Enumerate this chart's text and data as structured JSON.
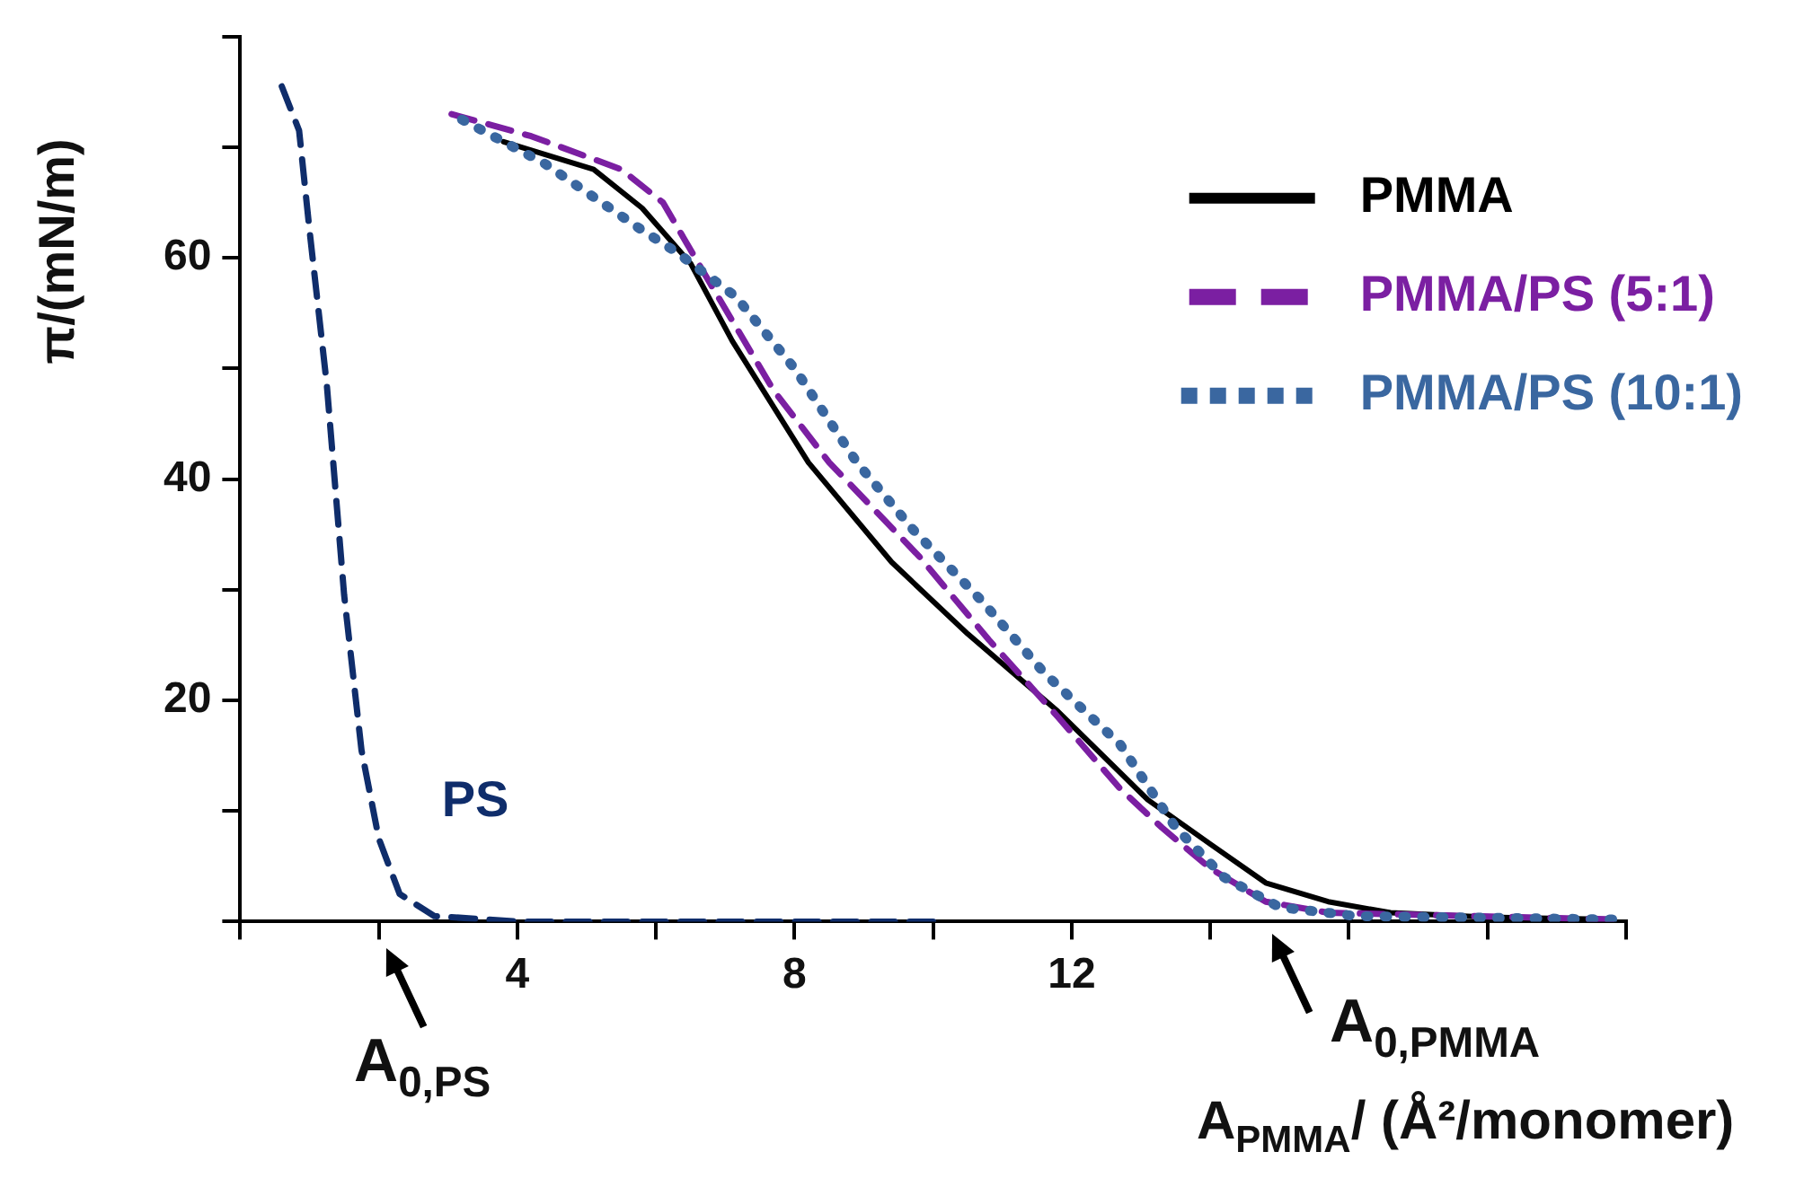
{
  "chart_data": {
    "type": "line",
    "xlabel": "A$_{PMMA}$/ (Å²/monomer)",
    "ylabel": "π/(mN/m)",
    "xlim": [
      0,
      20
    ],
    "xticks": [
      {
        "value": 0,
        "label": null
      },
      {
        "value": 2,
        "label": null
      },
      4,
      {
        "value": 6,
        "label": null
      },
      8,
      {
        "value": 10,
        "label": null
      },
      12,
      {
        "value": 14,
        "label": null
      },
      {
        "value": 16,
        "label": null
      },
      {
        "value": 18,
        "label": null
      },
      {
        "value": 20,
        "label": null
      }
    ],
    "ylim": [
      0,
      80
    ],
    "yticks": [
      {
        "value": 0,
        "label": null
      },
      {
        "value": 10,
        "label": null
      },
      20,
      {
        "value": 30,
        "label": null
      },
      40,
      {
        "value": 50,
        "label": null
      },
      60,
      {
        "value": 70,
        "label": null
      },
      {
        "value": 80,
        "label": null
      }
    ],
    "grid": false,
    "legend": "top right",
    "marker": "none",
    "series": [
      {
        "name": "PMMA",
        "color": "#000000",
        "line_style": "solid",
        "x": [
          3.8,
          5.1,
          5.8,
          6.5,
          7.1,
          8.2,
          9.4,
          10.5,
          11.8,
          13.1,
          14,
          14.8,
          15.7,
          16.6,
          18,
          19.8
        ],
        "values": [
          70.5,
          68,
          64.5,
          59.5,
          52.5,
          41.5,
          32.5,
          26,
          19,
          11,
          7,
          3.5,
          1.8,
          0.8,
          0.4,
          0.2
        ]
      },
      {
        "name": "PMMA/PS (5:1)",
        "color": "#7b1fa2",
        "line_style": "dashed",
        "x": [
          3.05,
          4.2,
          5.5,
          6.1,
          6.8,
          7.7,
          8.5,
          9.8,
          10.8,
          11.8,
          12.7,
          13.3,
          14,
          14.8,
          15.7,
          19.8
        ],
        "values": [
          73,
          71,
          68,
          65,
          57.5,
          48,
          41.5,
          33,
          25.5,
          18.5,
          12,
          8.5,
          4.8,
          1.8,
          0.8,
          0.2
        ]
      },
      {
        "name": "PMMA/PS (10:1)",
        "color": "#3a67a0",
        "line_style": "dotted",
        "x": [
          3.2,
          4.4,
          5.8,
          6.3,
          7.15,
          8,
          8.9,
          9.7,
          10.7,
          11.6,
          12.7,
          13.5,
          14.2,
          15,
          16.1,
          19.8
        ],
        "values": [
          72.5,
          68.5,
          62.5,
          60.5,
          56.5,
          50,
          41.5,
          35.5,
          29,
          22.5,
          16,
          8.5,
          4,
          1.3,
          0.5,
          0.2
        ]
      },
      {
        "name": "PS",
        "color": "#0f2d6b",
        "line_style": "dashed",
        "x": [
          0.6,
          0.85,
          1,
          1.25,
          1.5,
          1.75,
          2,
          2.3,
          2.8,
          4,
          6,
          8,
          10
        ],
        "values": [
          75.5,
          71.5,
          62.5,
          48.5,
          29.5,
          15.5,
          7.5,
          2.5,
          0.5,
          0,
          0,
          0,
          0
        ]
      }
    ],
    "annotations": [
      "A$_{0,PS}$",
      "A$_{0,PMMA}$"
    ]
  }
}
